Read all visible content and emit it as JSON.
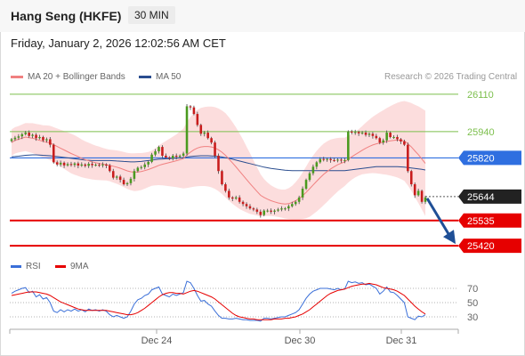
{
  "header": {
    "title": "Hang Seng (HKFE)",
    "interval": "30 MIN",
    "datetime": "Friday, January 2, 2026 12:02:56 AM CET",
    "credit": "Research © 2026 Trading Central"
  },
  "colors": {
    "bollinger_band": "#fbd7d7",
    "ma20": "#f08080",
    "ma50": "#2a4d8f",
    "resistance_line": "#7cbf4c",
    "pivot_line": "#2f6fe0",
    "support_line": "#e60000",
    "current_price": "#222222",
    "candle_up": "#4a9a1f",
    "candle_down": "#c81c1c",
    "rsi": "#3a6fd8",
    "rsi_ma": "#e60000",
    "forecast_arrow": "#1f4f96"
  },
  "chart_data": [
    {
      "type": "candlestick",
      "legend": [
        {
          "label": "MA 20 + Bollinger Bands",
          "color": "#f08080"
        },
        {
          "label": "MA 50",
          "color": "#2a4d8f"
        }
      ],
      "legend_position": "top-left",
      "ylim": [
        25380,
        26150
      ],
      "x_ticks": [
        "Dec 24",
        "Dec 30",
        "Dec 31"
      ],
      "levels": [
        {
          "value": 26110,
          "label": "26110",
          "kind": "resistance"
        },
        {
          "value": 25940,
          "label": "25940",
          "kind": "resistance"
        },
        {
          "value": 25820,
          "label": "25820",
          "kind": "pivot"
        },
        {
          "value": 25644,
          "label": "25644",
          "kind": "current"
        },
        {
          "value": 25535,
          "label": "25535",
          "kind": "support"
        },
        {
          "value": 25420,
          "label": "25420",
          "kind": "support"
        }
      ],
      "forecast_target": 25420,
      "close": [
        25905,
        25912,
        25918,
        25928,
        25935,
        25920,
        25925,
        25910,
        25915,
        25900,
        25905,
        25880,
        25800,
        25790,
        25798,
        25786,
        25792,
        25788,
        25795,
        25785,
        25790,
        25784,
        25793,
        25787,
        25789,
        25786,
        25790,
        25785,
        25760,
        25730,
        25735,
        25720,
        25700,
        25705,
        25725,
        25760,
        25775,
        25778,
        25790,
        25802,
        25835,
        25850,
        25870,
        25830,
        25822,
        25818,
        25830,
        25825,
        25830,
        25840,
        26055,
        26050,
        26020,
        25970,
        25930,
        25935,
        25910,
        25890,
        25830,
        25760,
        25700,
        25670,
        25640,
        25635,
        25640,
        25620,
        25610,
        25600,
        25590,
        25585,
        25575,
        25560,
        25580,
        25580,
        25575,
        25580,
        25585,
        25590,
        25590,
        25600,
        25610,
        25620,
        25640,
        25680,
        25720,
        25750,
        25780,
        25800,
        25815,
        25812,
        25815,
        25810,
        25808,
        25812,
        25808,
        25810,
        25940,
        25935,
        25938,
        25932,
        25935,
        25925,
        25930,
        25920,
        25910,
        25890,
        25900,
        25935,
        25915,
        25915,
        25905,
        25895,
        25880,
        25760,
        25700,
        25650,
        25670,
        25620,
        25640
      ],
      "ma20": [
        25890,
        25900,
        25905,
        25910,
        25915,
        25912,
        25910,
        25905,
        25900,
        25895,
        25892,
        25888,
        25880,
        25872,
        25864,
        25856,
        25848,
        25840,
        25833,
        25826,
        25818,
        25812,
        25807,
        25802,
        25798,
        25795,
        25792,
        25789,
        25786,
        25782,
        25778,
        25773,
        25767,
        25761,
        25757,
        25755,
        25756,
        25758,
        25762,
        25767,
        25773,
        25779,
        25786,
        25791,
        25795,
        25799,
        25803,
        25807,
        25812,
        25817,
        25833,
        25846,
        25857,
        25865,
        25870,
        25872,
        25872,
        25870,
        25865,
        25857,
        25846,
        25832,
        25815,
        25797,
        25779,
        25760,
        25741,
        25722,
        25703,
        25685,
        25667,
        25650,
        25640,
        25632,
        25625,
        25620,
        25615,
        25612,
        25610,
        25612,
        25617,
        25625,
        25635,
        25648,
        25663,
        25680,
        25697,
        25714,
        25730,
        25745,
        25758,
        25770,
        25780,
        25789,
        25796,
        25802,
        25814,
        25825,
        25835,
        25845,
        25855,
        25864,
        25872,
        25879,
        25884,
        25888,
        25891,
        25895,
        25898,
        25900,
        25901,
        25900,
        25897,
        25885,
        25870,
        25852,
        25835,
        25815,
        25795
      ],
      "ma50": [
        25825,
        25826,
        25828,
        25830,
        25832,
        25833,
        25834,
        25834,
        25833,
        25832,
        25831,
        25830,
        25828,
        25826,
        25824,
        25822,
        25820,
        25818,
        25816,
        25814,
        25812,
        25810,
        25809,
        25808,
        25808,
        25808,
        25808,
        25808,
        25808,
        25807,
        25806,
        25805,
        25804,
        25803,
        25802,
        25802,
        25803,
        25804,
        25806,
        25808,
        25810,
        25812,
        25814,
        25815,
        25816,
        25817,
        25818,
        25819,
        25820,
        25821,
        25824,
        25826,
        25828,
        25829,
        25830,
        25830,
        25830,
        25829,
        25828,
        25826,
        25824,
        25821,
        25818,
        25814,
        25810,
        25806,
        25802,
        25798,
        25794,
        25790,
        25786,
        25782,
        25778,
        25775,
        25772,
        25770,
        25768,
        25766,
        25764,
        25763,
        25762,
        25762,
        25762,
        25762,
        25762,
        25762,
        25762,
        25762,
        25762,
        25762,
        25762,
        25762,
        25762,
        25762,
        25762,
        25762,
        25764,
        25766,
        25768,
        25770,
        25772,
        25774,
        25776,
        25778,
        25780,
        25780,
        25780,
        25780,
        25780,
        25780,
        25780,
        25779,
        25778,
        25776,
        25774,
        25772,
        25770,
        25768,
        25765
      ],
      "bb_width": [
        60,
        60,
        60,
        62,
        64,
        66,
        68,
        70,
        72,
        74,
        76,
        78,
        80,
        82,
        84,
        86,
        88,
        90,
        90,
        88,
        86,
        84,
        82,
        80,
        78,
        76,
        74,
        72,
        72,
        74,
        76,
        78,
        80,
        82,
        84,
        86,
        86,
        84,
        82,
        80,
        80,
        84,
        90,
        96,
        102,
        108,
        114,
        120,
        128,
        136,
        150,
        160,
        168,
        174,
        178,
        180,
        182,
        184,
        186,
        188,
        190,
        192,
        190,
        186,
        180,
        172,
        162,
        150,
        138,
        124,
        110,
        96,
        84,
        76,
        70,
        66,
        64,
        64,
        66,
        70,
        76,
        84,
        94,
        106,
        118,
        128,
        134,
        138,
        140,
        140,
        138,
        134,
        128,
        122,
        116,
        110,
        106,
        104,
        104,
        106,
        110,
        116,
        122,
        128,
        134,
        140,
        146,
        152,
        158,
        164,
        170,
        176,
        182,
        190,
        200,
        210,
        220,
        230,
        240
      ]
    },
    {
      "type": "line",
      "legend": [
        {
          "label": "RSI",
          "color": "#3a6fd8"
        },
        {
          "label": "9MA",
          "color": "#e60000"
        }
      ],
      "ylim": [
        20,
        85
      ],
      "y_ticks": [
        70,
        50,
        30
      ],
      "rsi": [
        63,
        66,
        68,
        70,
        71,
        64,
        66,
        58,
        61,
        55,
        57,
        50,
        38,
        36,
        40,
        37,
        40,
        38,
        41,
        38,
        40,
        37,
        41,
        39,
        40,
        38,
        40,
        38,
        33,
        30,
        32,
        30,
        28,
        30,
        38,
        48,
        54,
        56,
        60,
        62,
        68,
        70,
        72,
        62,
        60,
        58,
        62,
        60,
        62,
        64,
        80,
        78,
        70,
        60,
        52,
        53,
        48,
        45,
        38,
        32,
        28,
        28,
        27,
        27,
        28,
        27,
        26,
        26,
        25,
        25,
        25,
        24,
        28,
        28,
        27,
        28,
        29,
        30,
        30,
        32,
        34,
        36,
        40,
        48,
        56,
        62,
        66,
        68,
        70,
        70,
        70,
        69,
        68,
        70,
        68,
        69,
        80,
        78,
        79,
        77,
        78,
        75,
        76,
        73,
        70,
        62,
        66,
        72,
        65,
        64,
        60,
        55,
        50,
        30,
        28,
        26,
        31,
        30,
        33
      ],
      "rsi_ma": [
        60,
        61,
        62,
        63,
        64,
        65,
        65,
        65,
        64,
        63,
        62,
        60,
        57,
        54,
        51,
        49,
        47,
        45,
        43,
        41,
        40,
        39,
        39,
        39,
        39,
        39,
        39,
        39,
        38,
        37,
        36,
        35,
        34,
        33,
        33,
        34,
        36,
        39,
        42,
        46,
        50,
        54,
        58,
        61,
        63,
        64,
        64,
        63,
        63,
        62,
        64,
        66,
        67,
        66,
        64,
        62,
        60,
        58,
        55,
        51,
        47,
        43,
        39,
        35,
        32,
        30,
        29,
        28,
        27,
        27,
        26,
        26,
        26,
        26,
        26,
        27,
        27,
        27,
        28,
        28,
        29,
        30,
        32,
        34,
        37,
        40,
        44,
        48,
        52,
        56,
        60,
        63,
        65,
        67,
        68,
        69,
        71,
        73,
        74,
        75,
        76,
        76,
        77,
        76,
        75,
        73,
        71,
        70,
        69,
        68,
        66,
        63,
        60,
        55,
        50,
        45,
        41,
        37,
        34
      ]
    }
  ]
}
